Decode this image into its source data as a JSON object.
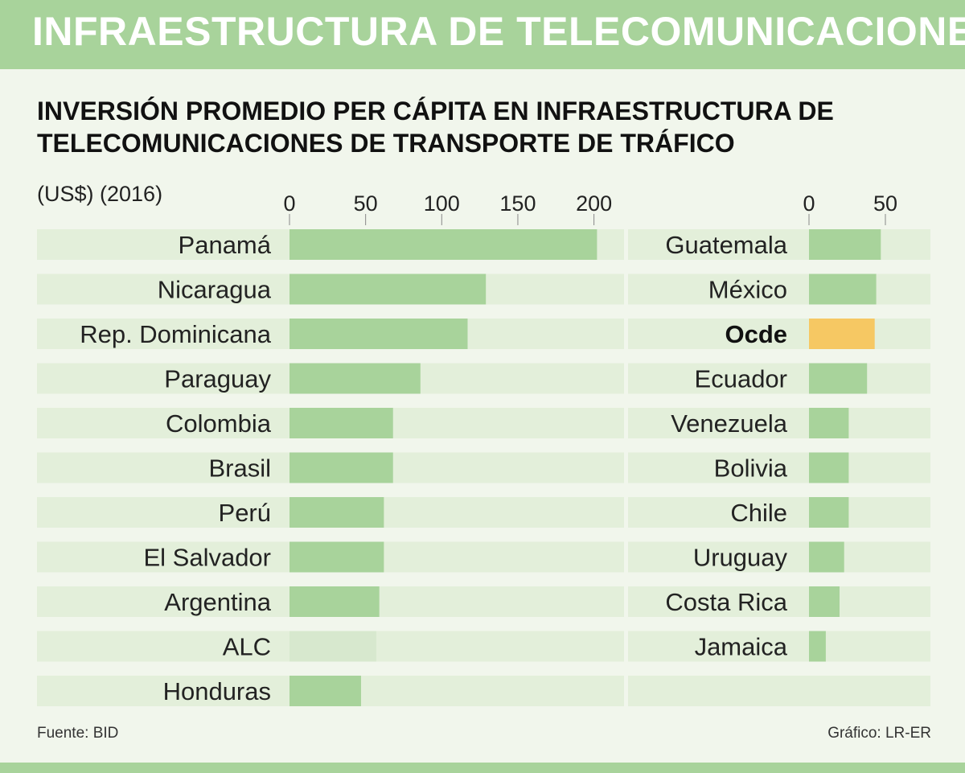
{
  "header": {
    "title": "INFRAESTRUCTURA DE TELECOMUNICACIONES"
  },
  "subtitle": "INVERSIÓN PROMEDIO PER CÁPITA EN INFRAESTRUCTURA DE TELECOMUNICACIONES DE TRANSPORTE DE TRÁFICO",
  "unit_label": "(US$) (2016)",
  "footer": {
    "source": "Fuente: BID",
    "credit": "Gráfico: LR-ER"
  },
  "colors": {
    "bar": "#a8d39b",
    "bar_alc": "#d7e8ce",
    "bar_ocde": "#f6c863",
    "track": "#e3efda",
    "header": "#a8d39b",
    "background": "#f1f6ec"
  },
  "chart_data": [
    {
      "type": "bar",
      "orientation": "horizontal",
      "xlim": [
        0,
        220
      ],
      "ticks": [
        0,
        50,
        100,
        150,
        200
      ],
      "categories": [
        "Panamá",
        "Nicaragua",
        "Rep. Dominicana",
        "Paraguay",
        "Colombia",
        "Brasil",
        "Perú",
        "El Salvador",
        "Argentina",
        "ALC",
        "Honduras"
      ],
      "values": [
        202,
        129,
        117,
        86,
        68,
        68,
        62,
        62,
        59,
        57,
        47
      ],
      "highlight": [
        "ALC"
      ]
    },
    {
      "type": "bar",
      "orientation": "horizontal",
      "xlim": [
        0,
        80
      ],
      "ticks": [
        0,
        50
      ],
      "categories": [
        "Guatemala",
        "México",
        "Ocde",
        "Ecuador",
        "Venezuela",
        "Bolivia",
        "Chile",
        "Uruguay",
        "Costa Rica",
        "Jamaica"
      ],
      "values": [
        47,
        44,
        43,
        38,
        26,
        26,
        26,
        23,
        20,
        11
      ],
      "highlight": [
        "Ocde"
      ]
    }
  ]
}
